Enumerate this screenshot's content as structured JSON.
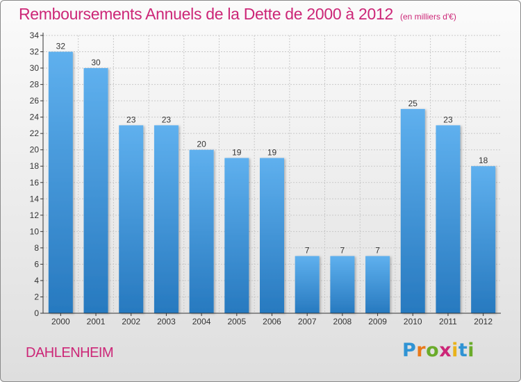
{
  "chart_data": {
    "type": "bar",
    "title": "Remboursements Annuels de la Dette de 2000 à 2012",
    "subtitle": "(en milliers d'€)",
    "categories": [
      "2000",
      "2001",
      "2002",
      "2003",
      "2004",
      "2005",
      "2006",
      "2007",
      "2008",
      "2009",
      "2010",
      "2011",
      "2012"
    ],
    "values": [
      32,
      30,
      23,
      23,
      20,
      19,
      19,
      7,
      7,
      7,
      25,
      23,
      18
    ],
    "ylim": [
      0,
      34
    ],
    "yticks": [
      0,
      2,
      4,
      6,
      8,
      10,
      12,
      14,
      16,
      18,
      20,
      22,
      24,
      26,
      28,
      30,
      32,
      34
    ],
    "xlabel": "",
    "ylabel": "",
    "bar_color": "#4a9fe0",
    "bar_color_top": "#5fb0ee",
    "bar_color_bottom": "#2779bf",
    "title_color": "#cc2677"
  },
  "footer": {
    "town": "DAHLENHEIM",
    "logo_letters": [
      "P",
      "r",
      "o",
      "x",
      "i",
      "t",
      "i"
    ]
  }
}
